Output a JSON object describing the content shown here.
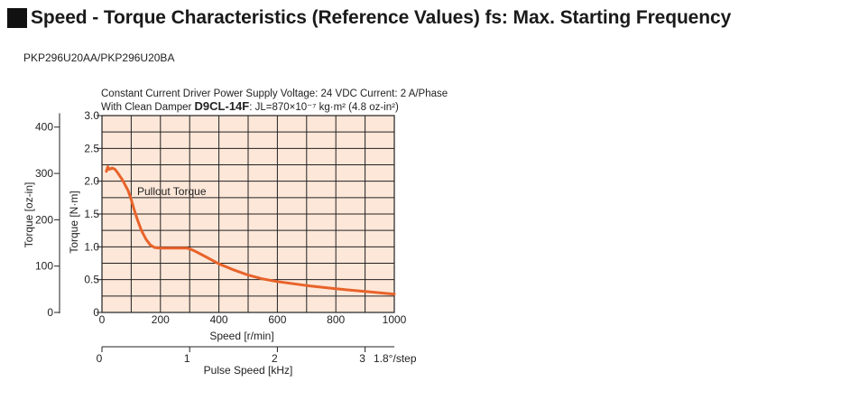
{
  "header": {
    "title": "Speed - Torque Characteristics (Reference Values) fs: Max. Starting Frequency"
  },
  "model_label": "PKP296U20AA/PKP296U20BA",
  "colors": {
    "plot_background": "#fde7d8",
    "curve": "#e8632a",
    "grid": "#222222"
  },
  "chart_data": {
    "type": "line",
    "title": "",
    "conditions": {
      "line1": "Constant Current Driver  Power Supply Voltage: 24 VDC  Current: 2 A/Phase",
      "line2_prefix": "With Clean Damper ",
      "damper_model": "D9CL-14F",
      "line2_suffix": ": JL=870×10⁻⁷ kg·m² (4.8 oz-in²)"
    },
    "xlabel": "Speed [r/min]",
    "xlim": [
      0,
      1000
    ],
    "xticks": [
      0,
      200,
      400,
      600,
      800,
      1000
    ],
    "ylabel_left": "Torque [oz-in]",
    "yticks_left": [
      0,
      100,
      200,
      300,
      400
    ],
    "ylabel": "Torque [N·m]",
    "ylim": [
      0,
      3.0
    ],
    "yticks": [
      0,
      0.5,
      1.0,
      1.5,
      2.0,
      2.5,
      3.0
    ],
    "ytick_labels": [
      "0",
      "0.5",
      "1.0",
      "1.5",
      "2.0",
      "2.5",
      "3.0"
    ],
    "x2label": "Pulse Speed [kHz]",
    "x2ticks": [
      0,
      1,
      2,
      3
    ],
    "x2_unit_note": "1.8°/step",
    "grid": true,
    "annotations": [
      {
        "text": "Pullout Torque",
        "x": 125,
        "y": 1.85
      }
    ],
    "series": [
      {
        "name": "Pullout Torque",
        "x": [
          15,
          20,
          25,
          35,
          45,
          55,
          70,
          90,
          100,
          110,
          120,
          135,
          150,
          165,
          180,
          200,
          230,
          260,
          290,
          300,
          320,
          350,
          400,
          450,
          500,
          550,
          600,
          700,
          800,
          900,
          1000
        ],
        "y": [
          2.15,
          2.22,
          2.18,
          2.2,
          2.18,
          2.12,
          2.02,
          1.85,
          1.72,
          1.57,
          1.43,
          1.25,
          1.12,
          1.03,
          0.99,
          0.98,
          0.98,
          0.98,
          0.98,
          0.97,
          0.93,
          0.86,
          0.74,
          0.65,
          0.57,
          0.51,
          0.47,
          0.41,
          0.36,
          0.32,
          0.28
        ]
      }
    ]
  }
}
